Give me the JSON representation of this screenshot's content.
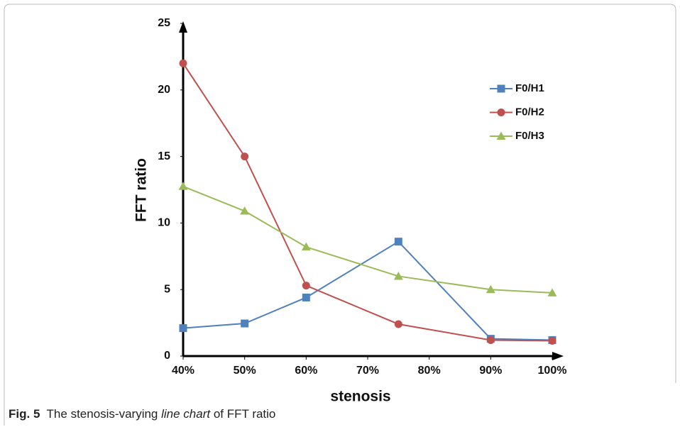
{
  "chart_data": {
    "type": "line",
    "y_label": "FFT ratio",
    "x_label": "stenosis",
    "x": [
      40,
      50,
      60,
      75,
      90,
      100
    ],
    "xlim": [
      40,
      100
    ],
    "xticks": [
      {
        "value": 40,
        "label": "40%"
      },
      {
        "value": 50,
        "label": "50%"
      },
      {
        "value": 60,
        "label": "60%"
      },
      {
        "value": 70,
        "label": "70%"
      },
      {
        "value": 80,
        "label": "80%"
      },
      {
        "value": 90,
        "label": "90%"
      },
      {
        "value": 100,
        "label": "100%"
      }
    ],
    "ylim": [
      0,
      25
    ],
    "yticks": [
      0,
      5,
      10,
      15,
      20,
      25
    ],
    "grid": false,
    "legend": "upper right",
    "series": [
      {
        "name": "F0/H1",
        "color": "#4f81bd",
        "marker": "square",
        "values": [
          2.1,
          2.45,
          4.4,
          8.6,
          1.3,
          1.2
        ]
      },
      {
        "name": "F0/H2",
        "color": "#c0504d",
        "marker": "circle",
        "values": [
          22.0,
          15.0,
          5.3,
          2.4,
          1.2,
          1.15
        ]
      },
      {
        "name": "F0/H3",
        "color": "#9bbb59",
        "marker": "triangle",
        "values": [
          12.75,
          10.9,
          8.2,
          6.0,
          5.0,
          4.75
        ]
      }
    ]
  },
  "caption": {
    "label": "Fig. 5",
    "before": "The stenosis-varying",
    "emphasis": "line chart",
    "after": "of FFT ratio"
  }
}
